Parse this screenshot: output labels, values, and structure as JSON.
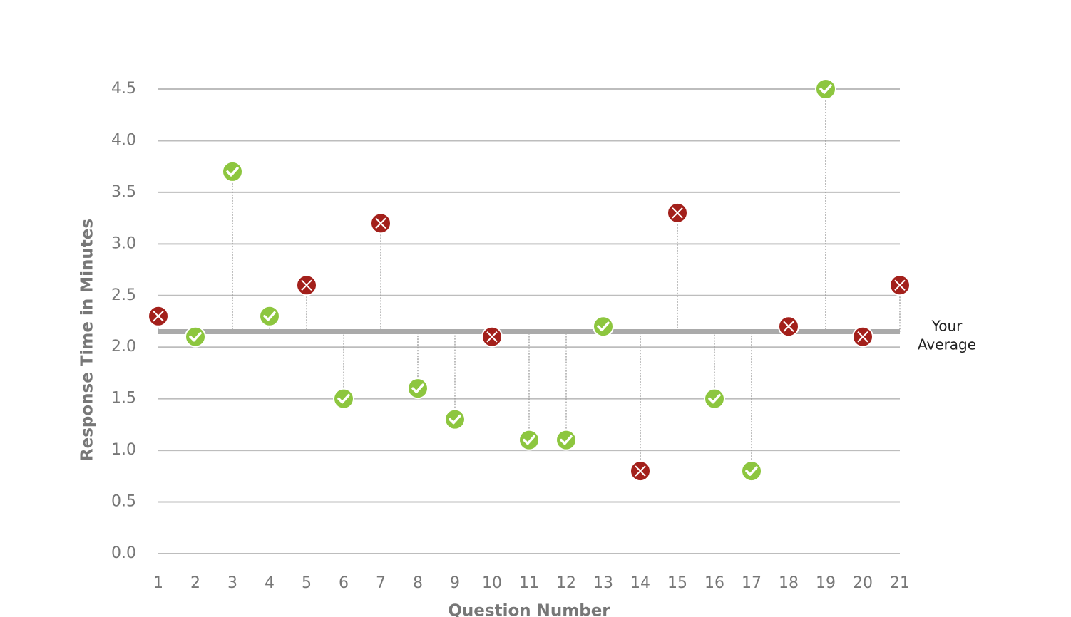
{
  "chart_data": {
    "type": "lollipop",
    "x_label": "Question Number",
    "y_label": "Response Time in Minutes",
    "x": [
      1,
      2,
      3,
      4,
      5,
      6,
      7,
      8,
      9,
      10,
      11,
      12,
      13,
      14,
      15,
      16,
      17,
      18,
      19,
      20,
      21
    ],
    "values": [
      2.3,
      2.1,
      3.7,
      2.3,
      2.6,
      1.5,
      3.2,
      1.6,
      1.3,
      2.1,
      1.1,
      1.1,
      2.2,
      0.8,
      3.3,
      1.5,
      0.8,
      2.2,
      4.5,
      2.1,
      2.6
    ],
    "correct": [
      false,
      true,
      true,
      true,
      false,
      true,
      false,
      true,
      true,
      false,
      true,
      true,
      true,
      false,
      false,
      true,
      true,
      false,
      true,
      false,
      false
    ],
    "correct_color": "#8dc63f",
    "incorrect_color": "#a3201b",
    "average": 2.15,
    "average_label": [
      "Your",
      "Average"
    ],
    "average_color": "#aaaaaa",
    "xlim": [
      1,
      21
    ],
    "xticks": [
      1,
      2,
      3,
      4,
      5,
      6,
      7,
      8,
      9,
      10,
      11,
      12,
      13,
      14,
      15,
      16,
      17,
      18,
      19,
      20,
      21
    ],
    "ylim": [
      0,
      4.5
    ],
    "yticks": [
      {
        "value": 0,
        "label": "0.0"
      },
      0.5,
      {
        "value": 1,
        "label": "1.0"
      },
      1.5,
      {
        "value": 2,
        "label": "2.0"
      },
      2.5,
      {
        "value": 3,
        "label": "3.0"
      },
      3.5,
      {
        "value": 4,
        "label": "4.0"
      },
      4.5
    ],
    "grid": true
  }
}
